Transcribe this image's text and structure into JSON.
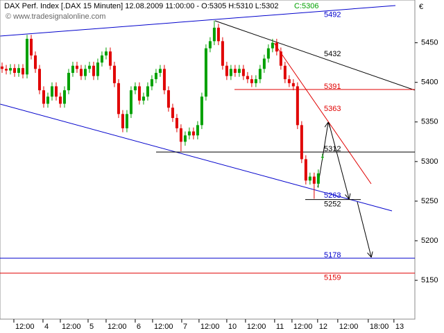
{
  "chart_data": {
    "type": "candlestick",
    "title": "DAX Perf. Index [.DAX  15 Minuten] 12.08.2009 11:00:00 - O:5305 H:5310 L:5302",
    "close_label": "C:5306",
    "watermark": "© www.tradesignalonline.com",
    "currency": "€",
    "up_color": "#00a000",
    "down_color": "#e00000",
    "open": [
      5420,
      5417,
      5415,
      5418,
      5412,
      5418,
      5410,
      5455,
      5434,
      5417,
      5390,
      5373,
      5382,
      5395,
      5382,
      5373,
      5390,
      5412,
      5421,
      5417,
      5408,
      5417,
      5421,
      5408,
      5425,
      5434,
      5439,
      5421,
      5399,
      5360,
      5342,
      5360,
      5390,
      5395,
      5377,
      5382,
      5395,
      5404,
      5412,
      5417,
      5390,
      5368,
      5355,
      5342,
      5325,
      5333,
      5338,
      5333,
      5346,
      5382,
      5443,
      5452,
      5469,
      5452,
      5421,
      5408,
      5417,
      5412,
      5417,
      5408,
      5404,
      5399,
      5404,
      5417,
      5430,
      5443,
      5450,
      5439,
      5421,
      5404,
      5399,
      5395,
      5346,
      5303,
      5276,
      5281,
      5272,
      5305
    ],
    "high": [
      5425,
      5422,
      5423,
      5423,
      5423,
      5423,
      5460,
      5460,
      5439,
      5422,
      5395,
      5387,
      5400,
      5400,
      5387,
      5395,
      5417,
      5426,
      5426,
      5422,
      5422,
      5426,
      5426,
      5430,
      5439,
      5444,
      5444,
      5426,
      5404,
      5365,
      5365,
      5395,
      5400,
      5400,
      5387,
      5400,
      5409,
      5417,
      5422,
      5422,
      5395,
      5373,
      5360,
      5347,
      5338,
      5343,
      5343,
      5351,
      5387,
      5448,
      5457,
      5478,
      5474,
      5457,
      5426,
      5422,
      5422,
      5422,
      5422,
      5413,
      5409,
      5409,
      5422,
      5435,
      5448,
      5455,
      5455,
      5444,
      5426,
      5409,
      5404,
      5400,
      5351,
      5308,
      5286,
      5286,
      5290,
      5310
    ],
    "low": [
      5412,
      5410,
      5410,
      5407,
      5407,
      5405,
      5405,
      5429,
      5412,
      5385,
      5368,
      5368,
      5377,
      5377,
      5368,
      5368,
      5385,
      5407,
      5412,
      5403,
      5403,
      5412,
      5403,
      5403,
      5420,
      5429,
      5416,
      5394,
      5355,
      5337,
      5337,
      5355,
      5385,
      5372,
      5372,
      5377,
      5390,
      5399,
      5407,
      5385,
      5363,
      5350,
      5337,
      5313,
      5320,
      5328,
      5328,
      5328,
      5341,
      5377,
      5438,
      5447,
      5447,
      5416,
      5403,
      5403,
      5407,
      5407,
      5403,
      5399,
      5394,
      5394,
      5399,
      5412,
      5425,
      5438,
      5434,
      5416,
      5399,
      5394,
      5390,
      5341,
      5298,
      5271,
      5271,
      5253,
      5267,
      5302
    ],
    "close": [
      5417,
      5415,
      5418,
      5412,
      5418,
      5410,
      5455,
      5434,
      5417,
      5390,
      5373,
      5382,
      5395,
      5382,
      5373,
      5390,
      5412,
      5421,
      5417,
      5408,
      5417,
      5421,
      5408,
      5425,
      5434,
      5439,
      5421,
      5399,
      5360,
      5342,
      5360,
      5390,
      5395,
      5377,
      5382,
      5395,
      5404,
      5412,
      5417,
      5390,
      5368,
      5355,
      5342,
      5325,
      5333,
      5338,
      5333,
      5346,
      5382,
      5443,
      5452,
      5469,
      5452,
      5421,
      5408,
      5417,
      5412,
      5417,
      5408,
      5404,
      5399,
      5404,
      5417,
      5430,
      5443,
      5450,
      5439,
      5421,
      5404,
      5399,
      5395,
      5346,
      5303,
      5276,
      5281,
      5272,
      5285,
      5306
    ],
    "xlim": [
      -0.5,
      99.2
    ],
    "xticks": [
      {
        "value": 2.83,
        "label": "12:00"
      },
      {
        "value": 9.83,
        "label": "4"
      },
      {
        "value": 14,
        "label": "12:00"
      },
      {
        "value": 20.67,
        "label": "5"
      },
      {
        "value": 25,
        "label": "12:00"
      },
      {
        "value": 32,
        "label": "6"
      },
      {
        "value": 36.17,
        "label": "12:00"
      },
      {
        "value": 43.17,
        "label": "7"
      },
      {
        "value": 47.33,
        "label": "12:00"
      },
      {
        "value": 54,
        "label": "10"
      },
      {
        "value": 58.5,
        "label": "12:00"
      },
      {
        "value": 65.5,
        "label": "11"
      },
      {
        "value": 69.67,
        "label": "12:00"
      },
      {
        "value": 75.83,
        "label": "12"
      },
      {
        "value": 80.67,
        "label": "12:00"
      },
      {
        "value": 88,
        "label": "18:00"
      },
      {
        "value": 94.17,
        "label": "13"
      }
    ],
    "ylim": [
      5101,
      5504
    ],
    "yticks": [
      5150,
      5200,
      5250,
      5300,
      5350,
      5400,
      5450
    ],
    "levels": [
      {
        "value": 5492,
        "color": "#0000cc"
      },
      {
        "value": 5432,
        "color": "#000000"
      },
      {
        "value": 5391,
        "color": "#e00000"
      },
      {
        "value": 5363,
        "color": "#e00000"
      },
      {
        "value": 5312,
        "color": "#000000"
      },
      {
        "value": 5263,
        "color": "#0000cc"
      },
      {
        "value": 5252,
        "color": "#000000"
      },
      {
        "value": 5178,
        "color": "#0000cc"
      },
      {
        "value": 5159,
        "color": "#e00000"
      }
    ]
  }
}
